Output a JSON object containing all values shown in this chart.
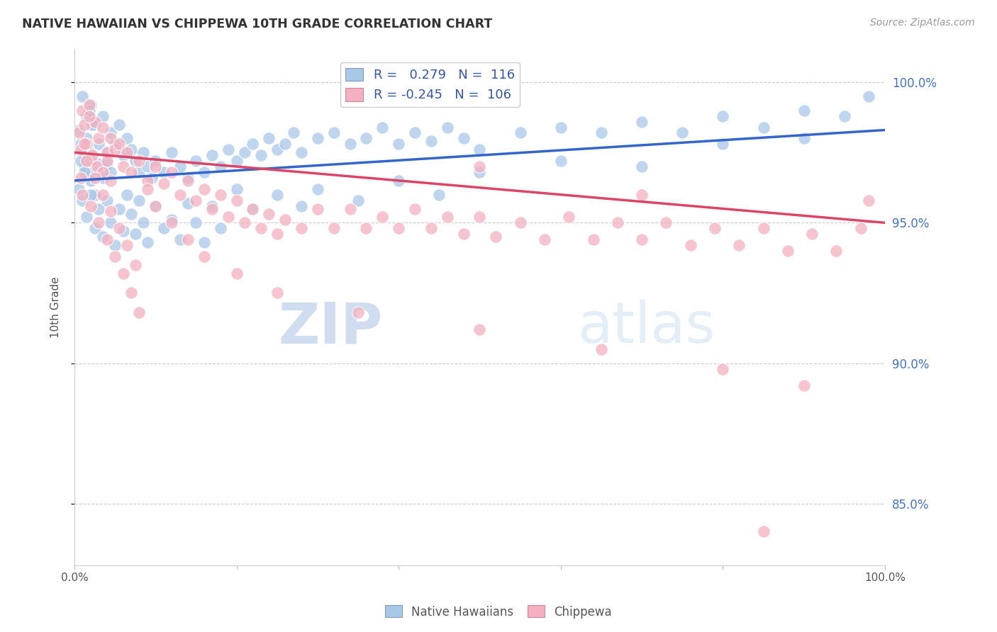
{
  "title": "NATIVE HAWAIIAN VS CHIPPEWA 10TH GRADE CORRELATION CHART",
  "source": "Source: ZipAtlas.com",
  "ylabel": "10th Grade",
  "ytick_labels": [
    "85.0%",
    "90.0%",
    "95.0%",
    "100.0%"
  ],
  "ytick_values": [
    0.85,
    0.9,
    0.95,
    1.0
  ],
  "xlim": [
    0.0,
    1.0
  ],
  "ylim": [
    0.828,
    1.012
  ],
  "blue_R": 0.279,
  "blue_N": 116,
  "pink_R": -0.245,
  "pink_N": 106,
  "blue_color": "#a8c8e8",
  "pink_color": "#f4b0c0",
  "blue_line_color": "#3366cc",
  "pink_line_color": "#dd4466",
  "legend_label_blue": "Native Hawaiians",
  "legend_label_pink": "Chippewa",
  "watermark_zip": "ZIP",
  "watermark_atlas": "atlas",
  "blue_line_x0": 0.0,
  "blue_line_y0": 0.965,
  "blue_line_x1": 1.0,
  "blue_line_y1": 0.983,
  "pink_line_x0": 0.0,
  "pink_line_y0": 0.975,
  "pink_line_x1": 1.0,
  "pink_line_y1": 0.95,
  "blue_x": [
    0.005,
    0.008,
    0.01,
    0.012,
    0.015,
    0.018,
    0.02,
    0.022,
    0.025,
    0.005,
    0.01,
    0.015,
    0.02,
    0.025,
    0.03,
    0.008,
    0.012,
    0.018,
    0.022,
    0.03,
    0.035,
    0.04,
    0.045,
    0.05,
    0.035,
    0.04,
    0.045,
    0.055,
    0.06,
    0.065,
    0.07,
    0.075,
    0.08,
    0.085,
    0.09,
    0.095,
    0.1,
    0.11,
    0.12,
    0.13,
    0.14,
    0.15,
    0.16,
    0.17,
    0.18,
    0.19,
    0.2,
    0.21,
    0.22,
    0.23,
    0.24,
    0.25,
    0.26,
    0.27,
    0.28,
    0.3,
    0.32,
    0.34,
    0.36,
    0.38,
    0.4,
    0.42,
    0.44,
    0.46,
    0.48,
    0.5,
    0.55,
    0.6,
    0.65,
    0.7,
    0.75,
    0.8,
    0.85,
    0.9,
    0.95,
    0.98,
    0.01,
    0.015,
    0.02,
    0.025,
    0.03,
    0.035,
    0.04,
    0.045,
    0.05,
    0.055,
    0.06,
    0.065,
    0.07,
    0.075,
    0.08,
    0.085,
    0.09,
    0.1,
    0.11,
    0.12,
    0.13,
    0.14,
    0.15,
    0.16,
    0.17,
    0.18,
    0.2,
    0.22,
    0.25,
    0.28,
    0.3,
    0.35,
    0.4,
    0.45,
    0.5,
    0.6,
    0.7,
    0.8,
    0.9
  ],
  "blue_y": [
    0.983,
    0.978,
    0.995,
    0.97,
    0.988,
    0.975,
    0.992,
    0.968,
    0.985,
    0.962,
    0.975,
    0.98,
    0.965,
    0.96,
    0.978,
    0.972,
    0.968,
    0.99,
    0.985,
    0.971,
    0.988,
    0.975,
    0.982,
    0.978,
    0.966,
    0.971,
    0.968,
    0.985,
    0.974,
    0.98,
    0.976,
    0.972,
    0.968,
    0.975,
    0.97,
    0.966,
    0.972,
    0.968,
    0.975,
    0.97,
    0.966,
    0.972,
    0.968,
    0.974,
    0.97,
    0.976,
    0.972,
    0.975,
    0.978,
    0.974,
    0.98,
    0.976,
    0.978,
    0.982,
    0.975,
    0.98,
    0.982,
    0.978,
    0.98,
    0.984,
    0.978,
    0.982,
    0.979,
    0.984,
    0.98,
    0.976,
    0.982,
    0.984,
    0.982,
    0.986,
    0.982,
    0.988,
    0.984,
    0.99,
    0.988,
    0.995,
    0.958,
    0.952,
    0.96,
    0.948,
    0.955,
    0.945,
    0.958,
    0.95,
    0.942,
    0.955,
    0.947,
    0.96,
    0.953,
    0.946,
    0.958,
    0.95,
    0.943,
    0.956,
    0.948,
    0.951,
    0.944,
    0.957,
    0.95,
    0.943,
    0.956,
    0.948,
    0.962,
    0.955,
    0.96,
    0.956,
    0.962,
    0.958,
    0.965,
    0.96,
    0.968,
    0.972,
    0.97,
    0.978,
    0.98
  ],
  "pink_x": [
    0.005,
    0.008,
    0.01,
    0.012,
    0.015,
    0.018,
    0.02,
    0.025,
    0.03,
    0.008,
    0.012,
    0.018,
    0.022,
    0.028,
    0.035,
    0.04,
    0.045,
    0.05,
    0.035,
    0.04,
    0.045,
    0.055,
    0.06,
    0.065,
    0.07,
    0.08,
    0.09,
    0.1,
    0.11,
    0.12,
    0.13,
    0.14,
    0.15,
    0.16,
    0.17,
    0.18,
    0.19,
    0.2,
    0.21,
    0.22,
    0.23,
    0.24,
    0.25,
    0.26,
    0.28,
    0.3,
    0.32,
    0.34,
    0.36,
    0.38,
    0.4,
    0.42,
    0.44,
    0.46,
    0.48,
    0.5,
    0.52,
    0.55,
    0.58,
    0.61,
    0.64,
    0.67,
    0.7,
    0.73,
    0.76,
    0.79,
    0.82,
    0.85,
    0.88,
    0.91,
    0.94,
    0.97,
    0.01,
    0.02,
    0.03,
    0.04,
    0.05,
    0.06,
    0.07,
    0.08,
    0.015,
    0.025,
    0.035,
    0.045,
    0.055,
    0.065,
    0.075,
    0.09,
    0.1,
    0.12,
    0.14,
    0.16,
    0.2,
    0.25,
    0.35,
    0.5,
    0.65,
    0.8,
    0.9,
    0.5,
    0.7,
    0.85,
    0.98
  ],
  "pink_y": [
    0.982,
    0.976,
    0.99,
    0.985,
    0.978,
    0.992,
    0.972,
    0.986,
    0.98,
    0.966,
    0.978,
    0.988,
    0.974,
    0.97,
    0.984,
    0.975,
    0.98,
    0.976,
    0.968,
    0.972,
    0.965,
    0.978,
    0.97,
    0.975,
    0.968,
    0.972,
    0.965,
    0.97,
    0.964,
    0.968,
    0.96,
    0.965,
    0.958,
    0.962,
    0.955,
    0.96,
    0.952,
    0.958,
    0.95,
    0.955,
    0.948,
    0.953,
    0.946,
    0.951,
    0.948,
    0.955,
    0.948,
    0.955,
    0.948,
    0.952,
    0.948,
    0.955,
    0.948,
    0.952,
    0.946,
    0.952,
    0.945,
    0.95,
    0.944,
    0.952,
    0.944,
    0.95,
    0.944,
    0.95,
    0.942,
    0.948,
    0.942,
    0.948,
    0.94,
    0.946,
    0.94,
    0.948,
    0.96,
    0.956,
    0.95,
    0.944,
    0.938,
    0.932,
    0.925,
    0.918,
    0.972,
    0.966,
    0.96,
    0.954,
    0.948,
    0.942,
    0.935,
    0.962,
    0.956,
    0.95,
    0.944,
    0.938,
    0.932,
    0.925,
    0.918,
    0.912,
    0.905,
    0.898,
    0.892,
    0.97,
    0.96,
    0.84,
    0.958
  ]
}
